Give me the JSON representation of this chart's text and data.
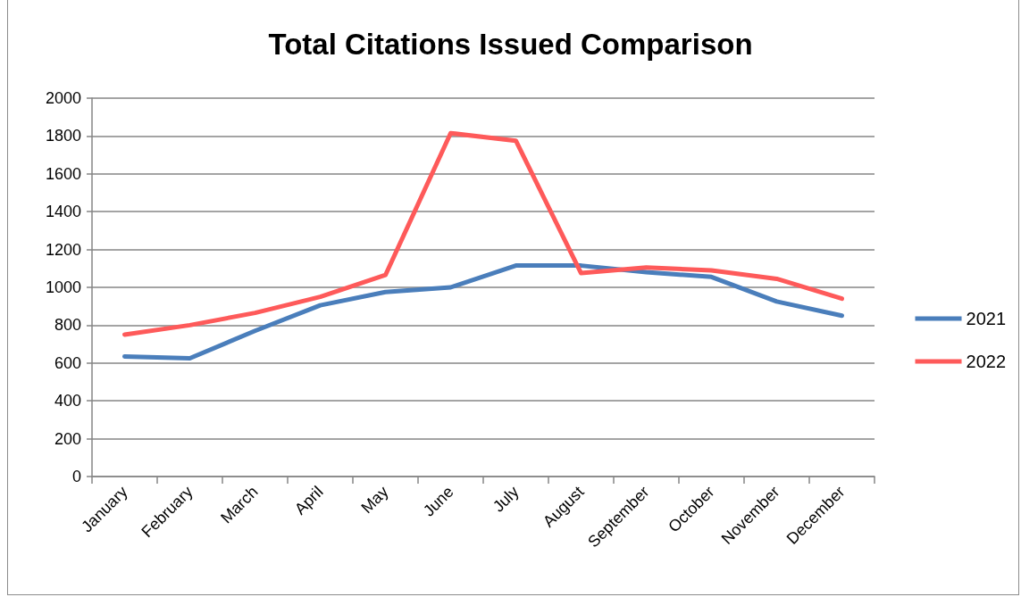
{
  "chart_data": {
    "type": "line",
    "title": "Total Citations Issued Comparison",
    "categories": [
      "January",
      "February",
      "March",
      "April",
      "May",
      "June",
      "July",
      "August",
      "September",
      "October",
      "November",
      "December"
    ],
    "series": [
      {
        "name": "2021",
        "color": "#4a7ebb",
        "values": [
          635,
          625,
          770,
          905,
          975,
          1000,
          1115,
          1115,
          1080,
          1055,
          925,
          850
        ]
      },
      {
        "name": "2022",
        "color": "#fe5a5a",
        "values": [
          750,
          800,
          865,
          950,
          1065,
          1815,
          1775,
          1075,
          1105,
          1090,
          1045,
          940
        ]
      }
    ],
    "ylim": [
      0,
      2000
    ],
    "yticks": [
      0,
      200,
      400,
      600,
      800,
      1000,
      1200,
      1400,
      1600,
      1800,
      2000
    ],
    "grid": "y",
    "legend": "right",
    "line_style": "solid"
  }
}
